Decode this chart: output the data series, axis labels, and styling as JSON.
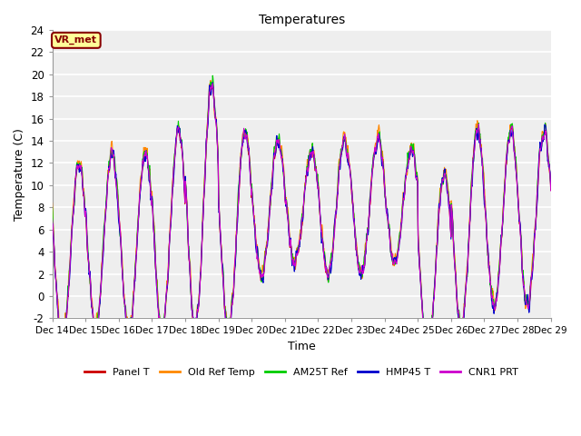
{
  "title": "Temperatures",
  "xlabel": "Time",
  "ylabel": "Temperature (C)",
  "ylim": [
    -2,
    24
  ],
  "yticks": [
    -2,
    0,
    2,
    4,
    6,
    8,
    10,
    12,
    14,
    16,
    18,
    20,
    22,
    24
  ],
  "x_labels": [
    "Dec 14",
    "Dec 15",
    "Dec 16",
    "Dec 17",
    "Dec 18",
    "Dec 19",
    "Dec 20",
    "Dec 21",
    "Dec 22",
    "Dec 23",
    "Dec 24",
    "Dec 25",
    "Dec 26",
    "Dec 27",
    "Dec 28",
    "Dec 29"
  ],
  "series_colors": [
    "#cc0000",
    "#ff8800",
    "#00cc00",
    "#0000cc",
    "#cc00cc"
  ],
  "series_names": [
    "Panel T",
    "Old Ref Temp",
    "AM25T Ref",
    "HMP45 T",
    "CNR1 PRT"
  ],
  "annotation_text": "VR_met",
  "annotation_color": "#880000",
  "annotation_bg": "#ffff99",
  "fig_bg": "#ffffff",
  "plot_bg": "#eeeeee",
  "grid_color": "#ffffff",
  "n_points": 1440,
  "n_days": 15,
  "figwidth": 6.4,
  "figheight": 4.8,
  "dpi": 100
}
